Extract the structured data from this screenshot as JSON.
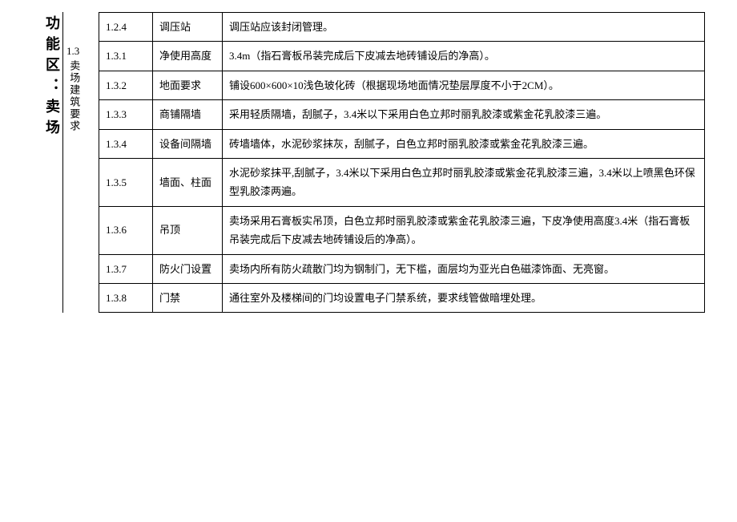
{
  "region_header": "功能区：卖场",
  "section": {
    "number": "1.3",
    "title": "卖场建筑要求"
  },
  "intro_row": {
    "num": "1.2.4",
    "name": "调压站",
    "desc": "调压站应该封闭管理。"
  },
  "rows": [
    {
      "num": "1.3.1",
      "name": "净使用高度",
      "desc": "3.4m（指石膏板吊装完成后下皮减去地砖铺设后的净高）。"
    },
    {
      "num": "1.3.2",
      "name": "地面要求",
      "desc": "铺设600×600×10浅色玻化砖（根据现场地面情况垫层厚度不小于2CM）。"
    },
    {
      "num": "1.3.3",
      "name": "商铺隔墙",
      "desc": "采用轻质隔墙，刮腻子，3.4米以下采用白色立邦时丽乳胶漆或紫金花乳胶漆三遍。"
    },
    {
      "num": "1.3.4",
      "name": "设备间隔墙",
      "desc": "砖墙墙体，水泥砂浆抹灰，刮腻子，白色立邦时丽乳胶漆或紫金花乳胶漆三遍。"
    },
    {
      "num": "1.3.5",
      "name": "墙面、柱面",
      "desc": "水泥砂浆抹平,刮腻子，3.4米以下采用白色立邦时丽乳胶漆或紫金花乳胶漆三遍，3.4米以上喷黑色环保型乳胶漆两遍。"
    },
    {
      "num": "1.3.6",
      "name": "吊顶",
      "desc": "卖场采用石膏板实吊顶，白色立邦时丽乳胶漆或紫金花乳胶漆三遍，下皮净使用高度3.4米（指石膏板吊装完成后下皮减去地砖铺设后的净高）。"
    },
    {
      "num": "1.3.7",
      "name": "防火门设置",
      "desc": "卖场内所有防火疏散门均为钢制门，无下槛，面层均为亚光白色磁漆饰面、无亮窗。"
    },
    {
      "num": "1.3.8",
      "name": "门禁",
      "desc": "通往室外及楼梯间的门均设置电子门禁系统，要求线管做暗埋处理。"
    }
  ]
}
